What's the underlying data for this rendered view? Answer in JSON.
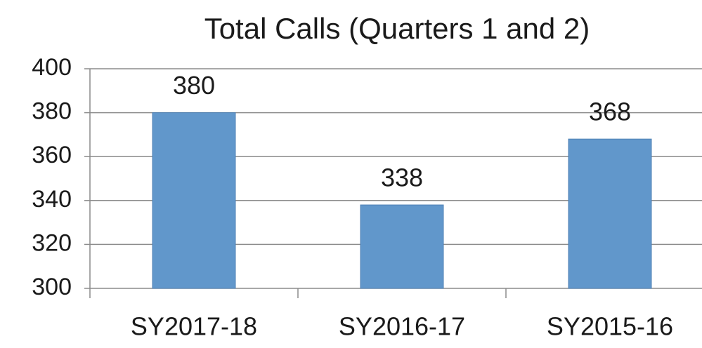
{
  "chart_data": {
    "type": "bar",
    "title": "Total Calls (Quarters 1 and 2)",
    "categories": [
      "SY2017-18",
      "SY2016-17",
      "SY2015-16"
    ],
    "values": [
      380,
      338,
      368
    ],
    "color": "#6197cb",
    "ylim": [
      300,
      400
    ],
    "yticks": [
      300,
      320,
      340,
      360,
      380,
      400
    ],
    "grid": true
  }
}
